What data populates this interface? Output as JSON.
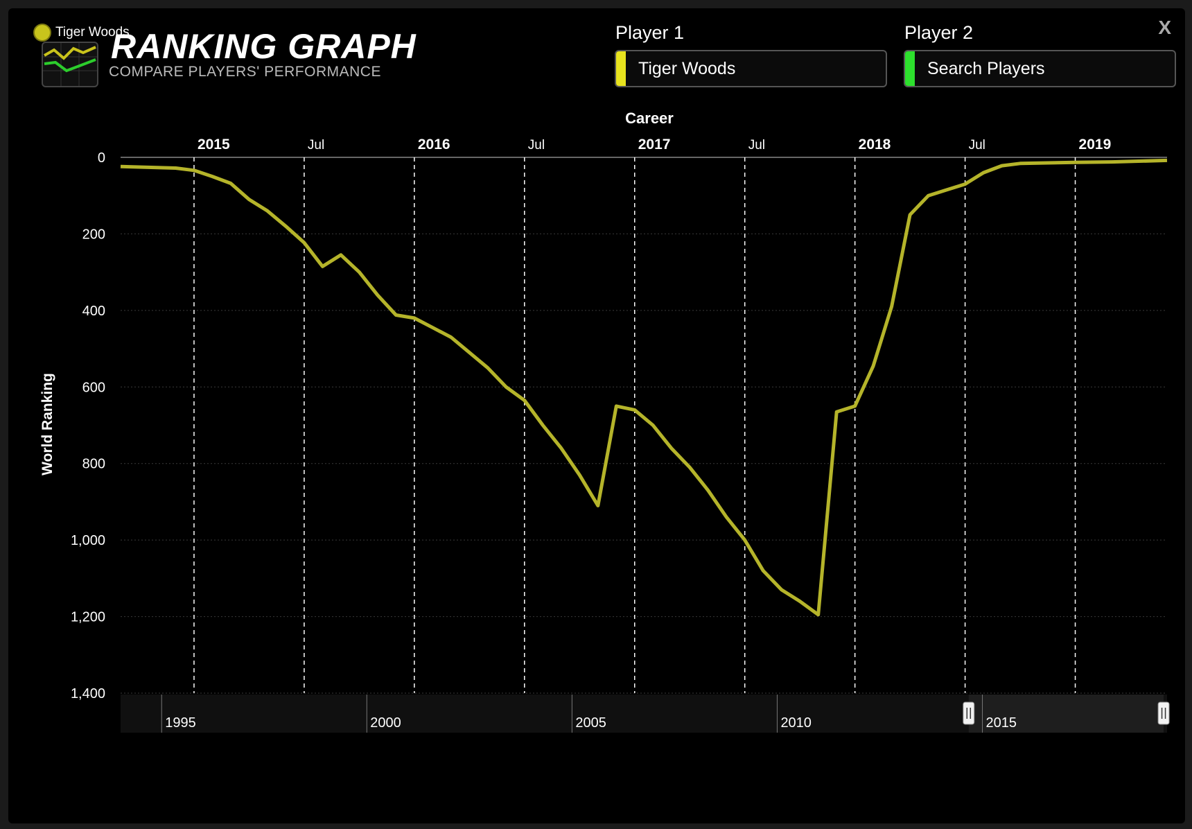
{
  "header": {
    "title": "RANKING GRAPH",
    "subtitle": "COMPARE PLAYERS' PERFORMANCE",
    "close_label": "X",
    "legend_name": "Tiger Woods"
  },
  "players": {
    "p1_label": "Player 1",
    "p1_value": "Tiger Woods",
    "p2_label": "Player 2",
    "p2_placeholder": "Search Players"
  },
  "colors": {
    "series": "#b5b42a",
    "player1": "#e8e31e",
    "player2": "#2de02d",
    "grid": "#3a3a3a"
  },
  "chart_data": {
    "type": "line",
    "title": "Career",
    "ylabel": "World Ranking",
    "y_reversed": true,
    "ylim": [
      0,
      1400
    ],
    "y_ticks": [
      0,
      200,
      400,
      600,
      800,
      1000,
      1200,
      1400
    ],
    "y_tick_labels": [
      "0",
      "200",
      "400",
      "600",
      "800",
      "1,000",
      "1,200",
      "1,400"
    ],
    "xlim": [
      "2014-09",
      "2019-06"
    ],
    "x_ticks": [
      {
        "date": "2015-01",
        "label": "2015",
        "major": true
      },
      {
        "date": "2015-07",
        "label": "Jul",
        "major": false
      },
      {
        "date": "2016-01",
        "label": "2016",
        "major": true
      },
      {
        "date": "2016-07",
        "label": "Jul",
        "major": false
      },
      {
        "date": "2017-01",
        "label": "2017",
        "major": true
      },
      {
        "date": "2017-07",
        "label": "Jul",
        "major": false
      },
      {
        "date": "2018-01",
        "label": "2018",
        "major": true
      },
      {
        "date": "2018-07",
        "label": "Jul",
        "major": false
      },
      {
        "date": "2019-01",
        "label": "2019",
        "major": true
      }
    ],
    "series": [
      {
        "name": "Tiger Woods",
        "points": [
          [
            "2014-09",
            24
          ],
          [
            "2014-12",
            28
          ],
          [
            "2015-01",
            34
          ],
          [
            "2015-02",
            50
          ],
          [
            "2015-03",
            68
          ],
          [
            "2015-04",
            110
          ],
          [
            "2015-05",
            140
          ],
          [
            "2015-06",
            180
          ],
          [
            "2015-07",
            223
          ],
          [
            "2015-08",
            285
          ],
          [
            "2015-09",
            255
          ],
          [
            "2015-10",
            300
          ],
          [
            "2015-11",
            360
          ],
          [
            "2015-12",
            412
          ],
          [
            "2016-01",
            420
          ],
          [
            "2016-02",
            445
          ],
          [
            "2016-03",
            470
          ],
          [
            "2016-04",
            510
          ],
          [
            "2016-05",
            550
          ],
          [
            "2016-06",
            600
          ],
          [
            "2016-07",
            635
          ],
          [
            "2016-08",
            700
          ],
          [
            "2016-09",
            760
          ],
          [
            "2016-10",
            830
          ],
          [
            "2016-11",
            910
          ],
          [
            "2016-12",
            650
          ],
          [
            "2017-01",
            660
          ],
          [
            "2017-02",
            700
          ],
          [
            "2017-03",
            760
          ],
          [
            "2017-04",
            810
          ],
          [
            "2017-05",
            870
          ],
          [
            "2017-06",
            940
          ],
          [
            "2017-07",
            1000
          ],
          [
            "2017-08",
            1080
          ],
          [
            "2017-09",
            1130
          ],
          [
            "2017-10",
            1160
          ],
          [
            "2017-11",
            1195
          ],
          [
            "2017-12",
            665
          ],
          [
            "2018-01",
            650
          ],
          [
            "2018-02",
            545
          ],
          [
            "2018-03",
            390
          ],
          [
            "2018-04",
            150
          ],
          [
            "2018-05",
            100
          ],
          [
            "2018-06",
            85
          ],
          [
            "2018-07",
            70
          ],
          [
            "2018-08",
            40
          ],
          [
            "2018-09",
            22
          ],
          [
            "2018-10",
            16
          ],
          [
            "2019-01",
            13
          ],
          [
            "2019-03",
            12
          ],
          [
            "2019-06",
            8
          ]
        ]
      }
    ],
    "navigator": {
      "labels": [
        "1995",
        "2000",
        "2005",
        "2010",
        "2015"
      ],
      "start": 1994,
      "end": 2019.5,
      "selected": [
        "2014-09",
        "2019-06"
      ]
    }
  }
}
